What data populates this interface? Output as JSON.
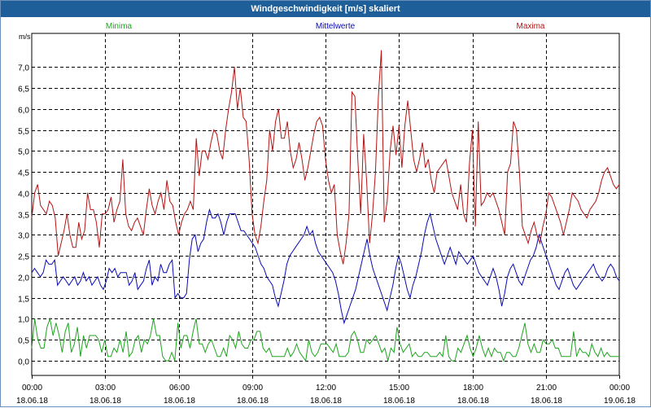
{
  "window": {
    "title": "Windgeschwindigkeit [m/s] skaliert"
  },
  "colors": {
    "minima": "#1ea51e",
    "mittel": "#0a0ab4",
    "maxima": "#b41414",
    "grid": "#000000"
  },
  "chart_data": {
    "type": "line",
    "title": "Windgeschwindigkeit [m/s] skaliert",
    "ylabel": "m/s",
    "xlabel": "",
    "ylim": [
      -0.35,
      7.8
    ],
    "xlim": [
      0,
      24
    ],
    "x_ticks": [
      {
        "time": "00:00",
        "date": "18.06.18"
      },
      {
        "time": "03:00",
        "date": "18.06.18"
      },
      {
        "time": "06:00",
        "date": "18.06.18"
      },
      {
        "time": "09:00",
        "date": "18.06.18"
      },
      {
        "time": "12:00",
        "date": "18.06.18"
      },
      {
        "time": "15:00",
        "date": "18.06.18"
      },
      {
        "time": "18:00",
        "date": "18.06.18"
      },
      {
        "time": "21:00",
        "date": "18.06.18"
      },
      {
        "time": "00:00",
        "date": "19.06.18"
      }
    ],
    "y_ticks": [
      "0,0",
      "0,5",
      "1,0",
      "1,5",
      "2,0",
      "2,5",
      "3,0",
      "3,5",
      "4,0",
      "4,5",
      "5,0",
      "5,5",
      "6,0",
      "6,5",
      "7,0"
    ],
    "grid": true,
    "legend_position": "top",
    "series": [
      {
        "name": "Minima",
        "color": "#1ea51e",
        "values": [
          0.3,
          1.0,
          0.5,
          0.3,
          0.3,
          0.8,
          1.0,
          0.6,
          0.9,
          0.6,
          0.2,
          0.7,
          0.9,
          0.2,
          0.4,
          0.8,
          0.1,
          0.6,
          0.3,
          0.6,
          0.6,
          0.6,
          0.5,
          0.2,
          0.5,
          0.1,
          0.1,
          0.3,
          0.2,
          0.5,
          0.2,
          0.7,
          0.1,
          0.2,
          0.5,
          0.6,
          0.2,
          0.5,
          0.4,
          0.6,
          1.0,
          0.6,
          0.6,
          0.1,
          0.0,
          0.0,
          0.2,
          0.0,
          0.9,
          0.3,
          0.6,
          0.6,
          0.3,
          0.7,
          1.0,
          0.4,
          0.4,
          0.2,
          0.4,
          0.5,
          0.3,
          0.1,
          0.1,
          0.3,
          0.1,
          0.6,
          0.5,
          0.3,
          0.7,
          0.4,
          0.3,
          0.3,
          0.5,
          0.5,
          0.7,
          0.7,
          0.3,
          0.2,
          0.3,
          0.1,
          0.1,
          0.1,
          0.1,
          0.1,
          0.3,
          0.1,
          0.2,
          0.4,
          0.2,
          0.1,
          0.0,
          0.5,
          0.2,
          0.1,
          0.2,
          0.4,
          0.4,
          0.4,
          0.3,
          0.2,
          0.4,
          0.1,
          0.1,
          0.1,
          0.2,
          0.6,
          0.7,
          0.5,
          0.2,
          0.2,
          0.5,
          0.4,
          0.5,
          0.6,
          0.4,
          0.2,
          0.3,
          0.0,
          0.3,
          0.2,
          0.8,
          0.4,
          0.2,
          0.3,
          0.4,
          0.1,
          0.2,
          0.1,
          0.1,
          0.2,
          0.2,
          0.1,
          0.1,
          0.1,
          0.2,
          0.1,
          0.6,
          0.1,
          0.0,
          0.0,
          0.3,
          0.2,
          0.4,
          0.6,
          0.3,
          0.1,
          0.3,
          0.6,
          0.3,
          0.1,
          0.3,
          0.1,
          0.3,
          0.2,
          0.2,
          0.0,
          0.2,
          0.2,
          0.1,
          0.1,
          0.3,
          0.6,
          0.9,
          0.4,
          0.2,
          0.4,
          0.2,
          0.2,
          0.5,
          0.4,
          0.4,
          0.5,
          0.3,
          0.3,
          0.1,
          0.1,
          0.1,
          0.1,
          0.7,
          0.1,
          0.3,
          0.2,
          0.2,
          0.1,
          0.4,
          0.2,
          0.1,
          0.3,
          0.1,
          0.2,
          0.1,
          0.1,
          0.1,
          0.1
        ]
      },
      {
        "name": "Mittelwerte",
        "color": "#0a0ab4",
        "values": [
          2.1,
          2.2,
          2.1,
          2.0,
          2.1,
          2.4,
          2.3,
          2.3,
          2.4,
          1.8,
          1.9,
          2.0,
          1.9,
          1.8,
          1.9,
          2.0,
          1.8,
          1.9,
          2.1,
          1.9,
          2.0,
          1.8,
          1.9,
          2.0,
          1.8,
          1.7,
          1.9,
          2.2,
          2.1,
          2.2,
          2.0,
          2.1,
          2.1,
          2.1,
          1.8,
          1.9,
          2.1,
          1.7,
          1.8,
          1.9,
          2.2,
          2.4,
          1.8,
          2.0,
          1.9,
          2.3,
          2.1,
          2.1,
          2.3,
          2.4,
          1.5,
          1.6,
          1.5,
          1.5,
          1.6,
          2.4,
          2.9,
          3.0,
          2.6,
          2.8,
          2.9,
          3.3,
          3.6,
          3.4,
          3.4,
          3.5,
          3.3,
          3.0,
          3.3,
          3.5,
          3.5,
          3.5,
          3.3,
          3.1,
          3.1,
          3.0,
          2.9,
          2.8,
          2.7,
          2.5,
          2.3,
          2.2,
          2.0,
          1.9,
          1.8,
          1.5,
          1.3,
          1.6,
          1.9,
          2.3,
          2.5,
          2.6,
          2.7,
          2.8,
          2.9,
          3.0,
          3.2,
          3.0,
          3.1,
          2.8,
          2.6,
          2.5,
          2.4,
          2.3,
          2.2,
          2.1,
          1.9,
          1.6,
          1.2,
          0.9,
          1.1,
          1.3,
          1.5,
          1.7,
          2.0,
          2.3,
          2.6,
          2.9,
          2.5,
          2.2,
          2.0,
          1.8,
          1.6,
          1.4,
          1.2,
          1.5,
          1.8,
          2.2,
          2.5,
          2.3,
          2.0,
          1.7,
          1.5,
          1.8,
          2.0,
          2.3,
          2.6,
          3.0,
          3.3,
          3.5,
          3.2,
          2.9,
          2.7,
          2.5,
          2.3,
          2.5,
          2.7,
          2.5,
          2.3,
          2.6,
          2.5,
          2.4,
          2.3,
          2.4,
          2.5,
          2.3,
          2.1,
          2.0,
          1.9,
          1.8,
          2.0,
          2.2,
          2.0,
          1.7,
          1.3,
          1.6,
          2.0,
          2.2,
          2.3,
          2.1,
          1.9,
          1.8,
          2.0,
          2.2,
          2.4,
          2.5,
          2.7,
          3.0,
          2.8,
          2.6,
          2.4,
          2.2,
          2.0,
          1.8,
          1.7,
          1.9,
          2.1,
          2.2,
          2.0,
          1.8,
          1.7,
          1.8,
          1.9,
          2.0,
          2.1,
          2.2,
          2.3,
          2.1,
          2.0,
          1.9,
          2.0,
          2.2,
          2.3,
          2.2,
          2.0,
          1.9
        ]
      },
      {
        "name": "Maxima",
        "color": "#b41414",
        "values": [
          3.4,
          4.0,
          4.2,
          3.7,
          3.6,
          3.5,
          3.8,
          3.7,
          3.4,
          2.5,
          2.8,
          3.1,
          3.5,
          3.0,
          2.7,
          2.7,
          3.3,
          2.9,
          3.1,
          4.0,
          3.6,
          3.6,
          3.3,
          2.7,
          3.5,
          3.5,
          3.6,
          3.9,
          3.3,
          3.6,
          3.8,
          4.8,
          3.5,
          3.2,
          3.1,
          3.3,
          3.4,
          3.2,
          3.0,
          3.6,
          4.1,
          3.7,
          3.5,
          3.8,
          4.0,
          3.6,
          4.3,
          3.8,
          3.7,
          3.3,
          3.0,
          3.3,
          3.5,
          3.6,
          3.8,
          3.6,
          5.3,
          4.4,
          5.0,
          5.0,
          4.8,
          5.2,
          5.5,
          5.4,
          5.0,
          4.8,
          5.5,
          6.0,
          6.4,
          7.0,
          6.0,
          6.5,
          5.8,
          5.7,
          4.8,
          3.5,
          3.0,
          2.8,
          3.2,
          3.8,
          4.3,
          5.5,
          5.0,
          5.7,
          6.0,
          5.3,
          5.3,
          5.7,
          5.0,
          4.6,
          4.8,
          5.2,
          4.8,
          4.3,
          4.6,
          5.0,
          5.4,
          5.7,
          5.8,
          5.6,
          4.8,
          4.3,
          4.0,
          4.2,
          3.0,
          2.6,
          2.3,
          2.8,
          3.5,
          6.4,
          6.3,
          4.8,
          3.5,
          5.4,
          4.3,
          2.8,
          3.5,
          4.5,
          6.3,
          7.4,
          3.3,
          3.8,
          5.0,
          5.6,
          4.9,
          5.6,
          4.6,
          5.6,
          6.2,
          5.5,
          4.8,
          4.5,
          4.8,
          5.2,
          4.6,
          4.8,
          4.3,
          4.0,
          4.5,
          4.6,
          4.7,
          4.8,
          4.4,
          4.0,
          3.8,
          3.6,
          4.2,
          3.5,
          3.3,
          4.7,
          5.5,
          3.2,
          5.7,
          3.7,
          3.8,
          4.0,
          3.9,
          4.0,
          3.8,
          3.6,
          3.3,
          3.0,
          4.5,
          4.7,
          5.7,
          5.5,
          4.5,
          3.2,
          3.0,
          2.8,
          3.1,
          3.3,
          3.0,
          2.8,
          3.2,
          3.5,
          4.0,
          3.9,
          3.7,
          3.5,
          3.3,
          3.0,
          3.3,
          3.6,
          4.0,
          3.9,
          3.8,
          3.6,
          3.5,
          3.4,
          3.6,
          3.7,
          3.8,
          4.0,
          4.3,
          4.5,
          4.6,
          4.4,
          4.2,
          4.1,
          4.2
        ]
      }
    ]
  }
}
